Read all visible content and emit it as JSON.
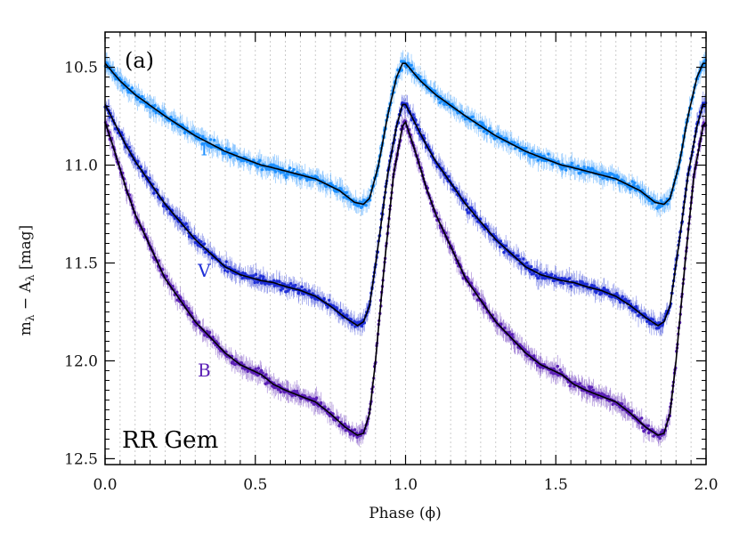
{
  "chart_data": {
    "type": "scatter",
    "panel_label": "(a)",
    "star": "RR Gem",
    "xlabel": "Phase (ϕ)",
    "ylabel_main": "m",
    "ylabel_sub": "λ",
    "ylabel_mid": " − A",
    "ylabel_sub2": "λ",
    "ylabel_unit": " [mag]",
    "xlim": [
      0.0,
      2.0
    ],
    "ylim": [
      12.53,
      10.32
    ],
    "y_inverted": true,
    "xticks": [
      0.0,
      0.5,
      1.0,
      1.5,
      2.0
    ],
    "xtick_labels": [
      "0.0",
      "0.5",
      "1.0",
      "1.5",
      "2.0"
    ],
    "yticks": [
      10.5,
      11.0,
      11.5,
      12.0,
      12.5
    ],
    "ytick_labels": [
      "10.5",
      "11.0",
      "11.5",
      "12.0",
      "12.5"
    ],
    "vertical_grid": "dotted gray lines every 0.05 in phase",
    "series": [
      {
        "name": "I",
        "color": "#1e90ff",
        "label_at": [
          0.33,
          10.95
        ],
        "template": [
          [
            0.0,
            10.48
          ],
          [
            0.05,
            10.57
          ],
          [
            0.1,
            10.64
          ],
          [
            0.2,
            10.75
          ],
          [
            0.3,
            10.85
          ],
          [
            0.4,
            10.93
          ],
          [
            0.45,
            10.96
          ],
          [
            0.52,
            11.0
          ],
          [
            0.55,
            11.01
          ],
          [
            0.6,
            11.03
          ],
          [
            0.7,
            11.07
          ],
          [
            0.78,
            11.13
          ],
          [
            0.83,
            11.19
          ],
          [
            0.86,
            11.2
          ],
          [
            0.88,
            11.17
          ],
          [
            0.91,
            11.0
          ],
          [
            0.94,
            10.75
          ],
          [
            0.97,
            10.55
          ],
          [
            0.99,
            10.48
          ],
          [
            1.0,
            10.48
          ]
        ]
      },
      {
        "name": "V",
        "color": "#1f2fd6",
        "label_at": [
          0.33,
          11.57
        ],
        "template": [
          [
            0.0,
            10.69
          ],
          [
            0.03,
            10.78
          ],
          [
            0.07,
            10.9
          ],
          [
            0.1,
            10.98
          ],
          [
            0.2,
            11.2
          ],
          [
            0.3,
            11.38
          ],
          [
            0.4,
            11.52
          ],
          [
            0.45,
            11.56
          ],
          [
            0.52,
            11.59
          ],
          [
            0.56,
            11.6
          ],
          [
            0.6,
            11.62
          ],
          [
            0.65,
            11.64
          ],
          [
            0.7,
            11.67
          ],
          [
            0.75,
            11.72
          ],
          [
            0.8,
            11.78
          ],
          [
            0.84,
            11.82
          ],
          [
            0.86,
            11.8
          ],
          [
            0.88,
            11.72
          ],
          [
            0.91,
            11.4
          ],
          [
            0.94,
            11.05
          ],
          [
            0.97,
            10.8
          ],
          [
            0.99,
            10.69
          ],
          [
            1.0,
            10.69
          ]
        ]
      },
      {
        "name": "B",
        "color": "#5b21b6",
        "label_at": [
          0.33,
          12.08
        ],
        "template": [
          [
            0.0,
            10.78
          ],
          [
            0.03,
            10.92
          ],
          [
            0.07,
            11.12
          ],
          [
            0.1,
            11.25
          ],
          [
            0.2,
            11.58
          ],
          [
            0.3,
            11.8
          ],
          [
            0.4,
            11.96
          ],
          [
            0.45,
            12.02
          ],
          [
            0.52,
            12.07
          ],
          [
            0.56,
            12.12
          ],
          [
            0.6,
            12.15
          ],
          [
            0.65,
            12.18
          ],
          [
            0.7,
            12.21
          ],
          [
            0.75,
            12.27
          ],
          [
            0.8,
            12.34
          ],
          [
            0.84,
            12.38
          ],
          [
            0.86,
            12.37
          ],
          [
            0.88,
            12.27
          ],
          [
            0.9,
            12.0
          ],
          [
            0.93,
            11.5
          ],
          [
            0.96,
            11.05
          ],
          [
            0.99,
            10.8
          ],
          [
            1.0,
            10.78
          ]
        ]
      }
    ]
  }
}
